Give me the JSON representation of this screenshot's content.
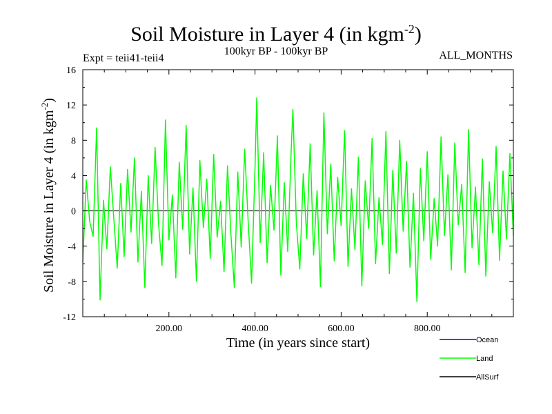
{
  "chart_data": {
    "type": "line",
    "title_main": "Soil Moisture in Layer 4 (in kgm",
    "title_sup": "-2",
    "title_close": ")",
    "subtitle": "100kyr BP - 100kyr BP",
    "experiment": "Expt = teii41-teii4",
    "months": "ALL_MONTHS",
    "xlabel": "Time (in years since start)",
    "ylabel_main": "Soil Moisture in Layer 4 (in kgm",
    "ylabel_sup": "-2",
    "ylabel_close": ")",
    "xlim": [
      0,
      1000
    ],
    "ylim": [
      -12,
      16
    ],
    "xticks": [
      200,
      400,
      600,
      800
    ],
    "xtick_labels": [
      "200.00",
      "400.00",
      "600.00",
      "800.00"
    ],
    "yticks": [
      -12,
      -8,
      -4,
      0,
      4,
      8,
      12,
      16
    ],
    "ytick_labels": [
      "-12",
      "-8",
      "-4",
      "0",
      "4",
      "8",
      "12",
      "16"
    ],
    "series": [
      {
        "name": "Ocean",
        "color": "#0000ff",
        "values": []
      },
      {
        "name": "Land",
        "color": "#00ff00",
        "values": [
          [
            0,
            -5.8
          ],
          [
            8,
            3.5
          ],
          [
            16,
            -1.2
          ],
          [
            24,
            -2.9
          ],
          [
            32,
            9.4
          ],
          [
            40,
            -10.1
          ],
          [
            48,
            1.2
          ],
          [
            56,
            -4.3
          ],
          [
            64,
            5.0
          ],
          [
            72,
            -0.8
          ],
          [
            80,
            -6.5
          ],
          [
            88,
            3.1
          ],
          [
            96,
            -5.2
          ],
          [
            104,
            4.7
          ],
          [
            112,
            -2.4
          ],
          [
            120,
            6.0
          ],
          [
            128,
            -5.8
          ],
          [
            136,
            2.2
          ],
          [
            144,
            -8.7
          ],
          [
            152,
            4.0
          ],
          [
            160,
            -3.7
          ],
          [
            168,
            7.2
          ],
          [
            176,
            -1.5
          ],
          [
            184,
            -6.2
          ],
          [
            192,
            10.3
          ],
          [
            200,
            -3.3
          ],
          [
            208,
            1.8
          ],
          [
            216,
            -7.6
          ],
          [
            224,
            5.5
          ],
          [
            232,
            -2.1
          ],
          [
            240,
            9.7
          ],
          [
            248,
            -4.9
          ],
          [
            256,
            2.6
          ],
          [
            264,
            -8.0
          ],
          [
            272,
            5.7
          ],
          [
            280,
            -1.9
          ],
          [
            288,
            3.6
          ],
          [
            296,
            -5.4
          ],
          [
            304,
            6.4
          ],
          [
            312,
            -3.0
          ],
          [
            320,
            1.1
          ],
          [
            328,
            -6.9
          ],
          [
            336,
            5.1
          ],
          [
            344,
            -2.7
          ],
          [
            352,
            -8.7
          ],
          [
            360,
            4.4
          ],
          [
            368,
            -4.1
          ],
          [
            376,
            7.0
          ],
          [
            384,
            -1.1
          ],
          [
            392,
            -8.2
          ],
          [
            400,
            4.9
          ],
          [
            404,
            12.8
          ],
          [
            412,
            -3.6
          ],
          [
            420,
            6.6
          ],
          [
            428,
            -5.9
          ],
          [
            436,
            2.9
          ],
          [
            444,
            -2.2
          ],
          [
            452,
            8.5
          ],
          [
            460,
            -7.3
          ],
          [
            468,
            3.2
          ],
          [
            476,
            -4.6
          ],
          [
            484,
            6.9
          ],
          [
            488,
            11.5
          ],
          [
            496,
            -1.4
          ],
          [
            504,
            -6.6
          ],
          [
            512,
            4.2
          ],
          [
            520,
            -3.1
          ],
          [
            528,
            7.6
          ],
          [
            536,
            -5.0
          ],
          [
            544,
            2.3
          ],
          [
            552,
            -8.6
          ],
          [
            560,
            11.1
          ],
          [
            568,
            -2.6
          ],
          [
            576,
            5.3
          ],
          [
            584,
            -5.7
          ],
          [
            592,
            3.8
          ],
          [
            600,
            -1.7
          ],
          [
            608,
            9.1
          ],
          [
            616,
            -6.3
          ],
          [
            624,
            2.5
          ],
          [
            632,
            -4.4
          ],
          [
            640,
            6.1
          ],
          [
            648,
            -8.5
          ],
          [
            656,
            3.4
          ],
          [
            664,
            -2.0
          ],
          [
            672,
            8.2
          ],
          [
            680,
            -6.0
          ],
          [
            688,
            1.5
          ],
          [
            696,
            -3.8
          ],
          [
            704,
            9.0
          ],
          [
            712,
            -7.1
          ],
          [
            720,
            4.6
          ],
          [
            728,
            -4.8
          ],
          [
            736,
            8.0
          ],
          [
            744,
            -2.3
          ],
          [
            752,
            5.6
          ],
          [
            760,
            -6.4
          ],
          [
            768,
            2.0
          ],
          [
            776,
            -10.3
          ],
          [
            784,
            4.8
          ],
          [
            792,
            -3.4
          ],
          [
            800,
            6.7
          ],
          [
            808,
            -5.5
          ],
          [
            816,
            1.4
          ],
          [
            824,
            -4.0
          ],
          [
            832,
            8.4
          ],
          [
            840,
            -2.8
          ],
          [
            848,
            4.1
          ],
          [
            856,
            -6.7
          ],
          [
            864,
            7.7
          ],
          [
            872,
            -1.6
          ],
          [
            880,
            3.0
          ],
          [
            888,
            -7.0
          ],
          [
            896,
            9.2
          ],
          [
            904,
            -4.2
          ],
          [
            912,
            2.7
          ],
          [
            920,
            -6.1
          ],
          [
            928,
            5.9
          ],
          [
            936,
            -7.4
          ],
          [
            944,
            3.3
          ],
          [
            952,
            -2.5
          ],
          [
            960,
            7.3
          ],
          [
            968,
            -5.6
          ],
          [
            976,
            4.5
          ],
          [
            984,
            -3.2
          ],
          [
            992,
            6.5
          ],
          [
            1000,
            -2.8
          ]
        ]
      },
      {
        "name": "AllSurf",
        "color": "#000000",
        "values": []
      }
    ],
    "grid": false,
    "legend_position": "bottom-right"
  }
}
